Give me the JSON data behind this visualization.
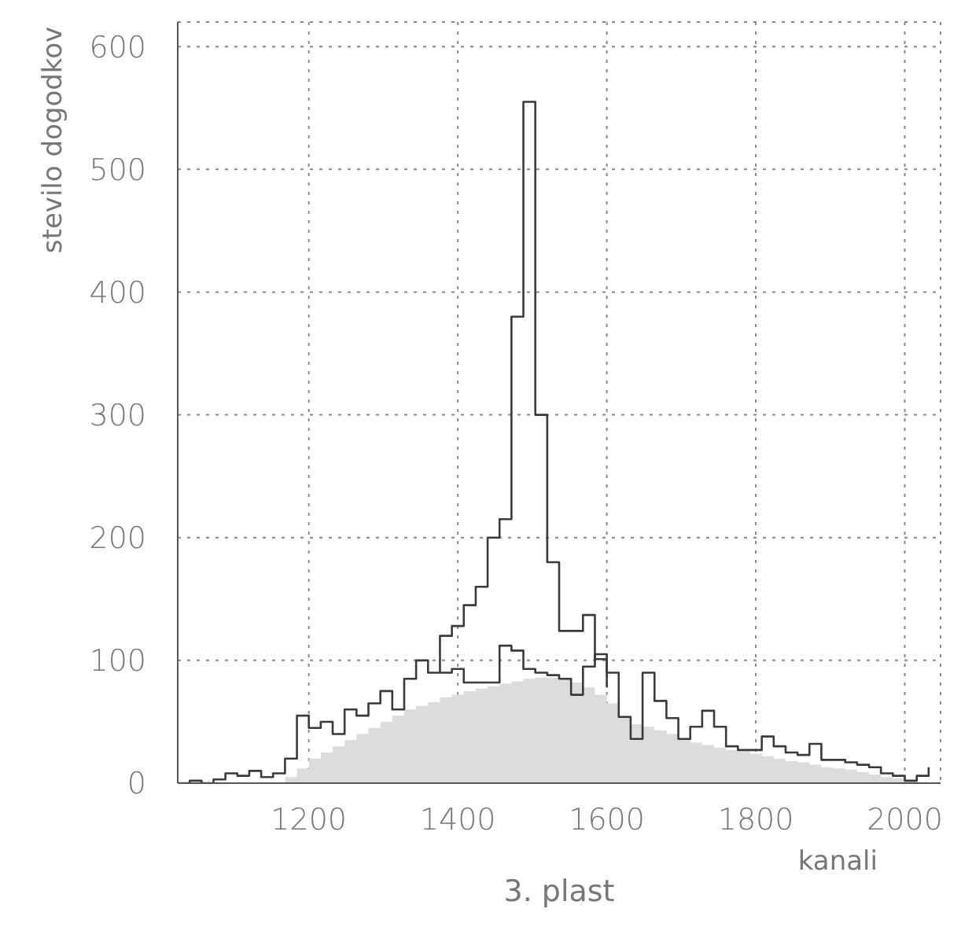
{
  "chart_data": {
    "type": "step",
    "title": "3. plast",
    "xlabel": "kanali",
    "ylabel": "stevilo dogodkov",
    "x": [
      1024,
      1040,
      1056,
      1072,
      1088,
      1104,
      1120,
      1136,
      1152,
      1168,
      1184,
      1200,
      1216,
      1232,
      1248,
      1264,
      1280,
      1296,
      1312,
      1328,
      1344,
      1360,
      1376,
      1392,
      1408,
      1424,
      1440,
      1456,
      1472,
      1488,
      1504,
      1520,
      1536,
      1552,
      1568,
      1584,
      1600,
      1616,
      1632,
      1648,
      1664,
      1680,
      1696,
      1712,
      1728,
      1744,
      1760,
      1776,
      1792,
      1808,
      1824,
      1840,
      1856,
      1872,
      1888,
      1904,
      1920,
      1936,
      1952,
      1968,
      1984,
      2000,
      2016,
      2032
    ],
    "series": [
      {
        "type": "area",
        "color": "#dcdcdc",
        "values": [
          0,
          0,
          0,
          0,
          0,
          0,
          0,
          0,
          0,
          5,
          12,
          20,
          25,
          30,
          35,
          40,
          45,
          50,
          55,
          60,
          63,
          66,
          70,
          72,
          75,
          77,
          79,
          81,
          83,
          85,
          86,
          86,
          85,
          82,
          78,
          72,
          65,
          55,
          48,
          46,
          43,
          40,
          36,
          33,
          31,
          29,
          27,
          26,
          24,
          22,
          20,
          18,
          17,
          15,
          13,
          12,
          11,
          9,
          7,
          5,
          4,
          2,
          1,
          0
        ]
      },
      {
        "type": "step",
        "color": "#3a3a3a",
        "values": [
          null,
          null,
          null,
          null,
          null,
          null,
          null,
          null,
          null,
          null,
          null,
          null,
          null,
          null,
          null,
          null,
          null,
          null,
          null,
          null,
          null,
          null,
          90,
          93,
          82,
          82,
          82,
          112,
          108,
          93,
          90,
          88,
          85,
          72,
          95,
          105,
          78,
          null,
          null,
          null,
          null,
          null,
          null,
          null,
          null,
          null,
          null,
          null,
          null,
          null,
          null,
          null,
          null,
          null,
          null,
          null,
          null,
          null,
          null,
          null,
          null,
          null,
          null,
          null
        ]
      },
      {
        "type": "step",
        "color": "#3a3a3a",
        "values": [
          0,
          2,
          0,
          3,
          8,
          6,
          10,
          5,
          8,
          20,
          55,
          45,
          50,
          40,
          60,
          55,
          65,
          75,
          60,
          85,
          100,
          90,
          120,
          128,
          145,
          160,
          200,
          215,
          380,
          555,
          300,
          180,
          124,
          124,
          137,
          101,
          90,
          54,
          36,
          90,
          67,
          53,
          36,
          46,
          59,
          46,
          30,
          27,
          27,
          38,
          30,
          25,
          23,
          32,
          19,
          19,
          17,
          15,
          13,
          8,
          6,
          2,
          6,
          13
        ]
      }
    ],
    "xlim": [
      1024,
      2048
    ],
    "xticks": [
      1200,
      1400,
      1600,
      1800,
      2000
    ],
    "ylim": [
      0,
      620
    ],
    "yticks": [
      0,
      100,
      200,
      300,
      400,
      500,
      600
    ],
    "grid": true
  }
}
